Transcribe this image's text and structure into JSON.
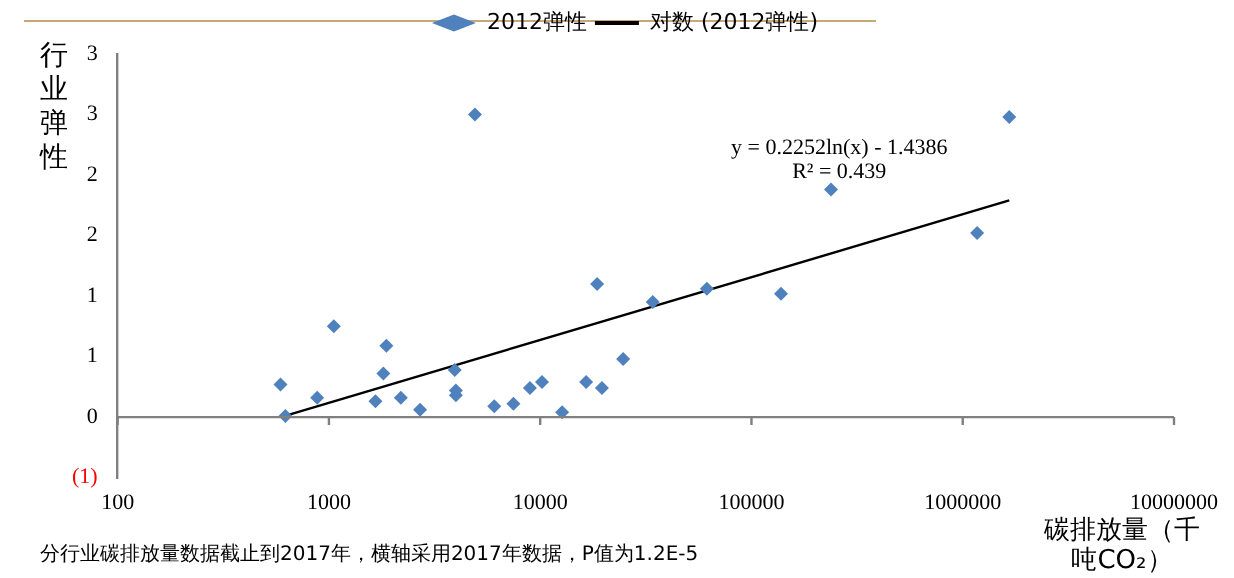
{
  "chart_data": {
    "type": "scatter",
    "xlabel": "碳排放量（千吨CO₂）",
    "ylabel": "行业弹性",
    "log": "x",
    "xlim": [
      100,
      10000000
    ],
    "xticks": [
      100,
      1000,
      10000,
      100000,
      1000000,
      10000000
    ],
    "ylim": [
      -0.5,
      3
    ],
    "yticks": [
      {
        "value": -0.5,
        "label": "(1)"
      },
      {
        "value": 0,
        "label": "0"
      },
      {
        "value": 0.5,
        "label": "1"
      },
      {
        "value": 1,
        "label": "1"
      },
      {
        "value": 1.5,
        "label": "2"
      },
      {
        "value": 2,
        "label": "2"
      },
      {
        "value": 2.5,
        "label": "3"
      },
      {
        "value": 3,
        "label": "3"
      }
    ],
    "grid": false,
    "legend": "top",
    "series": [
      {
        "name": "2012弹性",
        "marker": "diamond",
        "color": "#4f81bd",
        "x": [
          590,
          622,
          880,
          1055,
          1660,
          1810,
          1870,
          2190,
          2700,
          3940,
          3990,
          3990,
          4910,
          6060,
          7470,
          8940,
          10200,
          12700,
          16500,
          18600,
          19600,
          24700,
          34100,
          61500,
          138000,
          238000,
          1170000,
          1660000
        ],
        "values": [
          0.27,
          0.01,
          0.16,
          0.75,
          0.13,
          0.36,
          0.59,
          0.16,
          0.06,
          0.39,
          0.22,
          0.18,
          2.5,
          0.09,
          0.11,
          0.24,
          0.29,
          0.04,
          0.29,
          1.1,
          0.24,
          0.48,
          0.95,
          1.06,
          1.02,
          1.88,
          1.52,
          2.48
        ]
      },
      {
        "name": "对数 (2012弹性)",
        "type": "line",
        "marker": "none",
        "color": "#000000",
        "x": [
          620,
          1660000
        ],
        "values": [
          0.01,
          1.79
        ]
      }
    ],
    "ref_lines": [
      {
        "axis": "y",
        "value": 0,
        "color": "#808080"
      }
    ],
    "annotations": [
      "y = 0.2252ln(x) - 1.4386",
      "R² = 0.439",
      "分行业碳排放量数据截止到2017年，横轴采用2017年数据，P值为1.2E-5"
    ]
  }
}
